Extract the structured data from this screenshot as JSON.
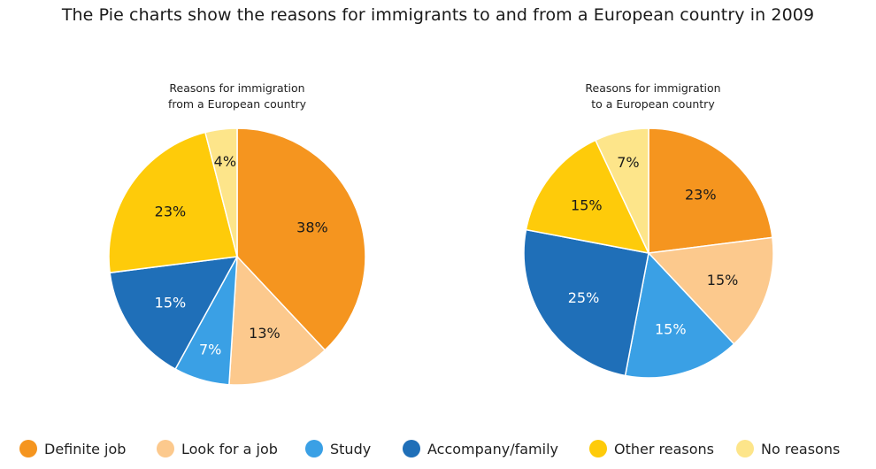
{
  "title": "The Pie charts show the reasons for immigrants to and from a European country in 2009",
  "colors": {
    "Definite job": "#f5951f",
    "Look for a job": "#fcc98d",
    "Study": "#3aa0e5",
    "Accompany/family": "#1f6fb8",
    "Other reasons": "#fecb0a",
    "No reasons": "#fde58a"
  },
  "legend": [
    "Definite job",
    "Look for a job",
    "Study",
    "Accompany/family",
    "Other reasons",
    "No reasons"
  ],
  "chart_data": [
    {
      "type": "pie",
      "title": "Reasons for immigration\nfrom a European country",
      "labels": [
        "Definite job",
        "Look for a job",
        "Study",
        "Accompany/family",
        "Other reasons",
        "No reasons"
      ],
      "values": [
        38,
        13,
        7,
        15,
        23,
        4
      ],
      "value_labels": [
        "38%",
        "13%",
        "7%",
        "15%",
        "23%",
        "4%"
      ]
    },
    {
      "type": "pie",
      "title": "Reasons for immigration\nto a European country",
      "labels": [
        "Definite job",
        "Look for a job",
        "Study",
        "Accompany/family",
        "Other reasons",
        "No reasons"
      ],
      "values": [
        23,
        15,
        15,
        25,
        15,
        7
      ],
      "value_labels": [
        "23%",
        "15%",
        "15%",
        "25%",
        "15%",
        "7%"
      ]
    }
  ]
}
